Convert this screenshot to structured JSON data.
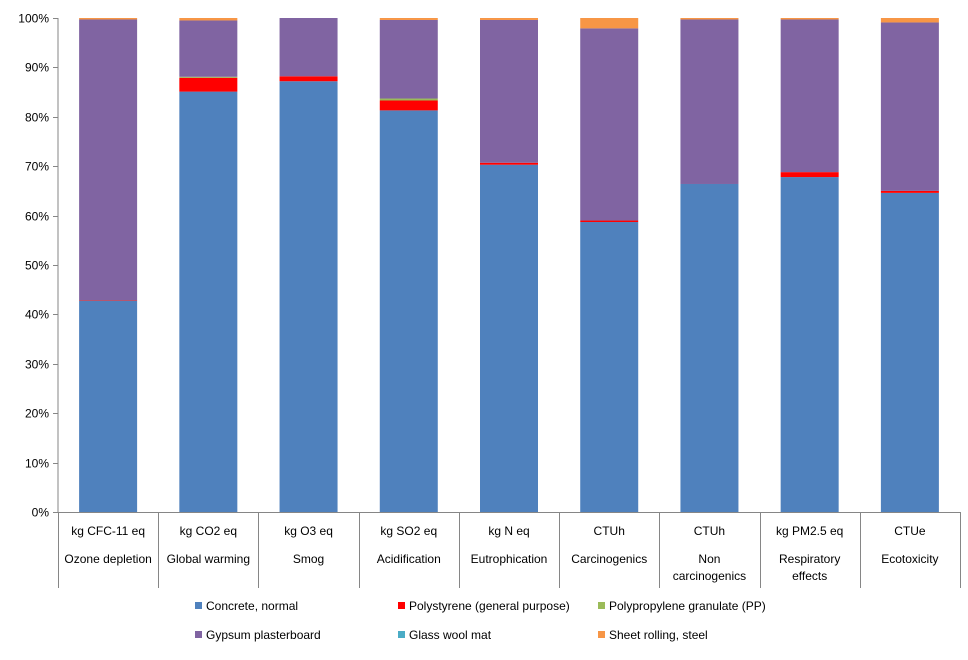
{
  "chart_data": {
    "type": "bar",
    "stacked": true,
    "categories": [
      {
        "unit": "kg CFC-11 eq",
        "name": "Ozone depletion"
      },
      {
        "unit": "kg CO2 eq",
        "name": "Global warming"
      },
      {
        "unit": "kg O3 eq",
        "name": "Smog"
      },
      {
        "unit": "kg SO2 eq",
        "name": "Acidification"
      },
      {
        "unit": "kg N eq",
        "name": "Eutrophication"
      },
      {
        "unit": "CTUh",
        "name": "Carcinogenics"
      },
      {
        "unit": "CTUh",
        "name": "Non carcinogenics"
      },
      {
        "unit": "kg PM2.5 eq",
        "name": "Respiratory effects"
      },
      {
        "unit": "CTUe",
        "name": "Ecotoxicity"
      }
    ],
    "series": [
      {
        "name": "Concrete, normal",
        "color": "#4F81BD",
        "values": [
          42.8,
          85.1,
          87.2,
          81.3,
          70.3,
          58.7,
          66.4,
          67.8,
          64.6
        ]
      },
      {
        "name": "Polystyrene (general purpose)",
        "color": "#FF0000",
        "values": [
          0.1,
          2.8,
          1.0,
          2.0,
          0.4,
          0.3,
          0.0,
          1.0,
          0.4
        ]
      },
      {
        "name": "Polypropylene granulate (PP)",
        "color": "#9BBB59",
        "values": [
          0.0,
          0.2,
          0.0,
          0.4,
          0.0,
          0.0,
          0.0,
          0.0,
          0.0
        ]
      },
      {
        "name": "Gypsum plasterboard",
        "color": "#8064A2",
        "values": [
          56.8,
          11.4,
          11.8,
          15.9,
          28.9,
          38.9,
          33.3,
          30.9,
          34.1
        ]
      },
      {
        "name": "Glass wool mat",
        "color": "#4BACC6",
        "values": [
          0.0,
          0.0,
          0.0,
          0.0,
          0.0,
          0.0,
          0.0,
          0.0,
          0.0
        ]
      },
      {
        "name": "Sheet rolling, steel",
        "color": "#F79646",
        "values": [
          0.3,
          0.5,
          0.0,
          0.4,
          0.4,
          2.1,
          0.3,
          0.3,
          0.9
        ]
      }
    ],
    "ylim": [
      0,
      100
    ],
    "yticks": [
      "0%",
      "10%",
      "20%",
      "30%",
      "40%",
      "50%",
      "60%",
      "70%",
      "80%",
      "90%",
      "100%"
    ],
    "grid": false,
    "legend_position": "bottom",
    "title": "",
    "xlabel": "",
    "ylabel": ""
  }
}
